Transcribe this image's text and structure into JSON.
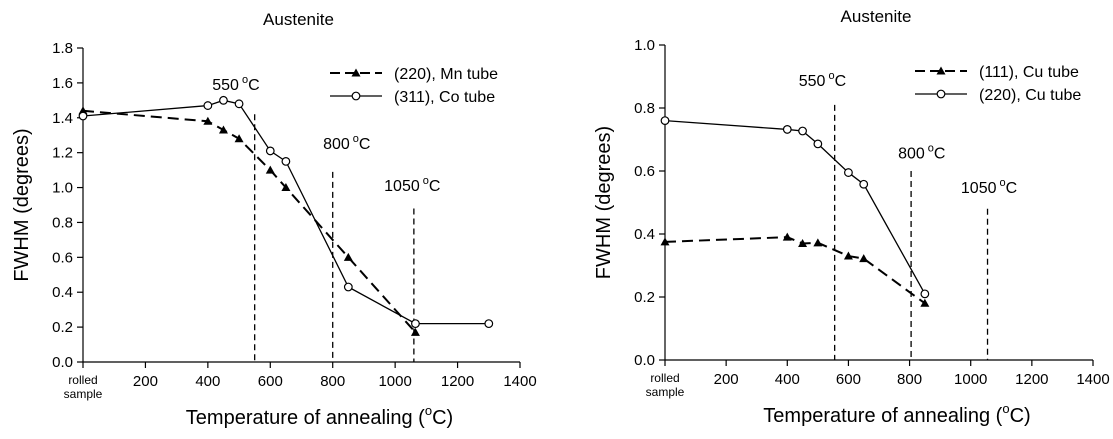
{
  "chart_data": [
    {
      "type": "line",
      "title": "Austenite",
      "xlabel": "Temperature of annealing (",
      "xlabel_sup": "o",
      "xlabel_end": "C)",
      "ylabel": "FWHM (degrees)",
      "xlim": [
        0,
        1400
      ],
      "ylim": [
        0,
        1.8
      ],
      "x_ticks": [
        200,
        400,
        600,
        800,
        1000,
        1200,
        1400
      ],
      "x_tick_labels": [
        "200",
        "400",
        "600",
        "800",
        "1000",
        "1200",
        "1400"
      ],
      "x_zero_label": [
        "rolled",
        "sample"
      ],
      "y_ticks": [
        0,
        0.2,
        0.4,
        0.6,
        0.8,
        1.0,
        1.2,
        1.4,
        1.6,
        1.8
      ],
      "y_tick_labels": [
        "0.0",
        "0.2",
        "0.4",
        "0.6",
        "0.8",
        "1.0",
        "1.2",
        "1.4",
        "1.6",
        "1.8"
      ],
      "legend_position": "top-right",
      "series": [
        {
          "name": "(220), Mn tube",
          "style": "dashed",
          "marker": "triangle",
          "x": [
            0,
            400,
            450,
            500,
            600,
            650,
            850,
            1065
          ],
          "y": [
            1.44,
            1.38,
            1.33,
            1.28,
            1.1,
            1.0,
            0.6,
            0.17
          ]
        },
        {
          "name": "(311), Co tube",
          "style": "solid",
          "marker": "circle",
          "x": [
            0,
            400,
            450,
            500,
            600,
            650,
            850,
            1065,
            1300
          ],
          "y": [
            1.41,
            1.47,
            1.5,
            1.48,
            1.21,
            1.15,
            0.43,
            0.22,
            0.22
          ]
        }
      ],
      "annotations": [
        {
          "x": 550,
          "text": "550",
          "unit": "C",
          "label_x": 490,
          "label_y": 1.56,
          "line_top": 1.42
        },
        {
          "x": 800,
          "text": "800",
          "unit": "C",
          "label_x": 845,
          "label_y": 1.22,
          "line_top": 1.09
        },
        {
          "x": 1060,
          "text": "1050",
          "unit": "C",
          "label_x": 1055,
          "label_y": 0.98,
          "line_top": 0.88
        }
      ]
    },
    {
      "type": "line",
      "title": "Austenite",
      "xlabel": "Temperature of annealing (",
      "xlabel_sup": "o",
      "xlabel_end": "C)",
      "ylabel": "FWHM (degrees)",
      "xlim": [
        0,
        1400
      ],
      "ylim": [
        0,
        1.0
      ],
      "x_ticks": [
        200,
        400,
        600,
        800,
        1000,
        1200,
        1400
      ],
      "x_tick_labels": [
        "200",
        "400",
        "600",
        "800",
        "1000",
        "1200",
        "1400"
      ],
      "x_zero_label": [
        "rolled",
        "sample"
      ],
      "y_ticks": [
        0,
        0.2,
        0.4,
        0.6,
        0.8,
        1.0
      ],
      "y_tick_labels": [
        "0.0",
        "0.2",
        "0.4",
        "0.6",
        "0.8",
        "1.0"
      ],
      "legend_position": "top-right",
      "series": [
        {
          "name": "(111), Cu tube",
          "style": "dashed",
          "marker": "triangle",
          "x": [
            0,
            400,
            450,
            500,
            600,
            650,
            850
          ],
          "y": [
            0.375,
            0.39,
            0.37,
            0.372,
            0.33,
            0.322,
            0.18
          ]
        },
        {
          "name": "(220),  Cu tube",
          "style": "solid",
          "marker": "circle",
          "x": [
            0,
            400,
            450,
            500,
            600,
            650,
            850
          ],
          "y": [
            0.76,
            0.732,
            0.727,
            0.686,
            0.595,
            0.558,
            0.21
          ]
        }
      ],
      "annotations": [
        {
          "x": 555,
          "text": "550",
          "unit": "C",
          "label_x": 515,
          "label_y": 0.87,
          "line_top": 0.81
        },
        {
          "x": 805,
          "text": "800",
          "unit": "C",
          "label_x": 840,
          "label_y": 0.64,
          "line_top": 0.6
        },
        {
          "x": 1055,
          "text": "1050",
          "unit": "C",
          "label_x": 1060,
          "label_y": 0.53,
          "line_top": 0.48
        }
      ]
    }
  ]
}
